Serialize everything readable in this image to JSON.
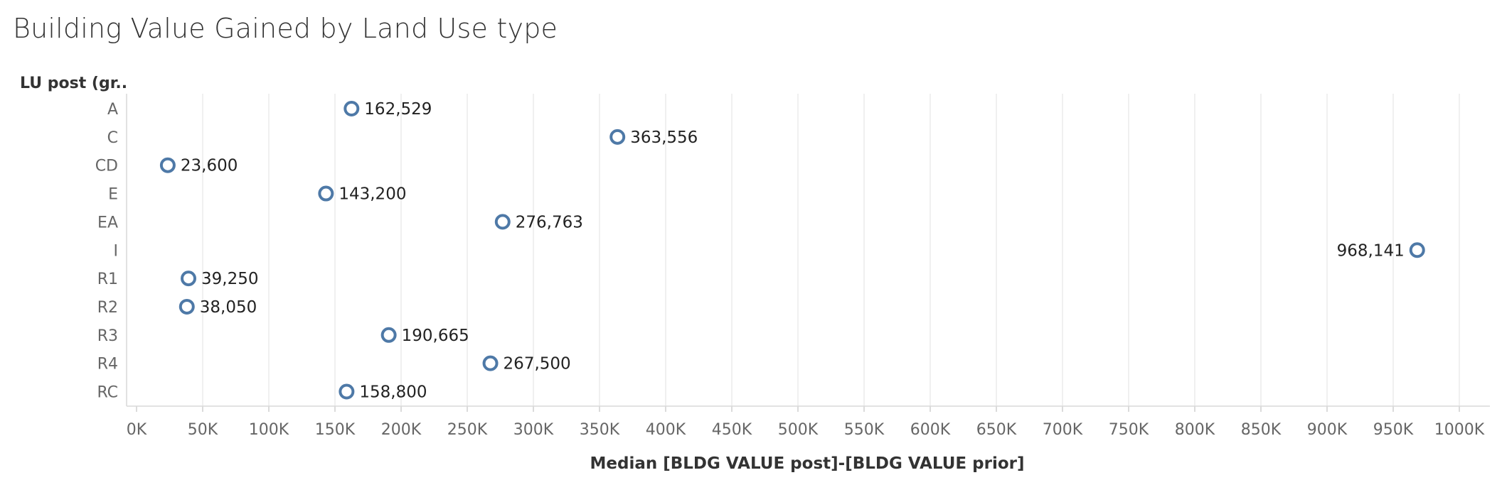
{
  "chart_data": {
    "type": "scatter",
    "title": "Building Value Gained by Land Use type",
    "row_header": "LU post (gr..",
    "xlabel": "Median [BLDG VALUE post]-[BLDG VALUE prior]",
    "xlim": [
      0,
      1000000
    ],
    "x_ticks": [
      0,
      50000,
      100000,
      150000,
      200000,
      250000,
      300000,
      350000,
      400000,
      450000,
      500000,
      550000,
      600000,
      650000,
      700000,
      750000,
      800000,
      850000,
      900000,
      950000,
      1000000
    ],
    "x_tick_labels": [
      "0K",
      "50K",
      "100K",
      "150K",
      "200K",
      "250K",
      "300K",
      "350K",
      "400K",
      "450K",
      "500K",
      "550K",
      "600K",
      "650K",
      "700K",
      "750K",
      "800K",
      "850K",
      "900K",
      "950K",
      "1000K"
    ],
    "grid": true,
    "marker_color": "#4e79a7",
    "categories": [
      "A",
      "C",
      "CD",
      "E",
      "EA",
      "I",
      "R1",
      "R2",
      "R3",
      "R4",
      "RC"
    ],
    "values": [
      162529,
      363556,
      23600,
      143200,
      276763,
      968141,
      39250,
      38050,
      190665,
      267500,
      158800
    ],
    "data_labels": [
      "162,529",
      "363,556",
      "23,600",
      "143,200",
      "276,763",
      "968,141",
      "39,250",
      "38,050",
      "190,665",
      "267,500",
      "158,800"
    ]
  }
}
